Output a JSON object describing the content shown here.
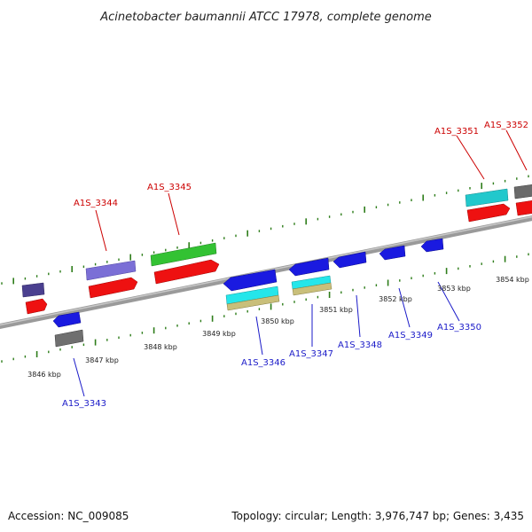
{
  "title": "Acinetobacter baumannii ATCC 17978, complete genome",
  "footer": {
    "accession": "Accession: NC_009085",
    "topology": "Topology: circular; Length: 3,976,747 bp; Genes: 3,435"
  },
  "colors": {
    "backbone": "#808080",
    "tick": "#2e7d1a",
    "label_forward": "#cc0000",
    "label_reverse": "#1a1ac8"
  },
  "kbp_labels": [
    "3846 kbp",
    "3847 kbp",
    "3848 kbp",
    "3849 kbp",
    "3850 kbp",
    "3851 kbp",
    "3852 kbp",
    "3853 kbp",
    "3854 kbp"
  ],
  "gene_labels": [
    {
      "text": "A1S_3344",
      "strand": "forward"
    },
    {
      "text": "A1S_3345",
      "strand": "forward"
    },
    {
      "text": "A1S_3351",
      "strand": "forward"
    },
    {
      "text": "A1S_3352",
      "strand": "forward"
    },
    {
      "text": "A1S_3343",
      "strand": "reverse"
    },
    {
      "text": "A1S_3346",
      "strand": "reverse"
    },
    {
      "text": "A1S_3347",
      "strand": "reverse"
    },
    {
      "text": "A1S_3348",
      "strand": "reverse"
    },
    {
      "text": "A1S_3349",
      "strand": "reverse"
    },
    {
      "text": "A1S_3350",
      "strand": "reverse"
    }
  ]
}
